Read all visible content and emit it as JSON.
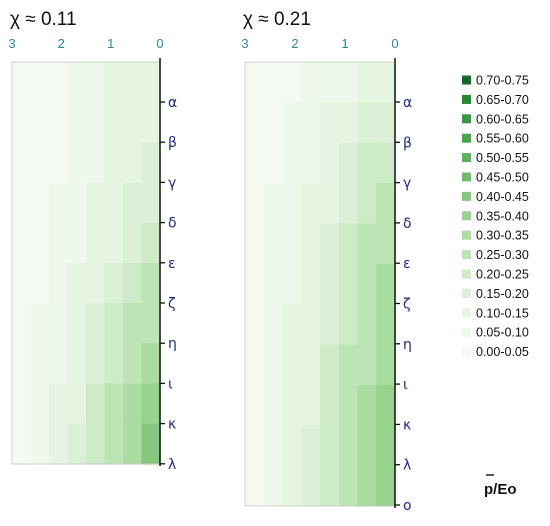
{
  "chart_data": {
    "type": "heatmap",
    "colorbar_title": "p/Eo",
    "colors": [
      "#f4faf2",
      "#eef8ec",
      "#e6f5e2",
      "#dbf0d6",
      "#cdebc6",
      "#bde4b5",
      "#abdca2",
      "#98d28f",
      "#84c77d",
      "#6fbd6b",
      "#5bb25b",
      "#46a64c",
      "#339a3f",
      "#238b33",
      "#0f6b25"
    ],
    "legend": [
      "0.70-0.75",
      "0.65-0.70",
      "0.60-0.65",
      "0.55-0.60",
      "0.50-0.55",
      "0.45-0.50",
      "0.40-0.45",
      "0.35-0.40",
      "0.30-0.35",
      "0.25-0.30",
      "0.20-0.25",
      "0.15-0.20",
      "0.10-0.15",
      "0.05-0.10",
      "0.00-0.05"
    ],
    "panels": [
      {
        "title": "χ ≈ 0.11",
        "x_ticks": [
          "3",
          "2",
          "1",
          "0"
        ],
        "x_range": [
          3,
          0
        ],
        "y_ticks": [
          "α",
          "β",
          "γ",
          "δ",
          "ε",
          "ζ",
          "η",
          "ι",
          "κ",
          "λ"
        ],
        "rows": [
          [
            0.02,
            0.03,
            0.04,
            0.06,
            0.08,
            0.1,
            0.12,
            0.14
          ],
          [
            0.02,
            0.03,
            0.04,
            0.06,
            0.08,
            0.1,
            0.12,
            0.14
          ],
          [
            0.02,
            0.03,
            0.04,
            0.06,
            0.08,
            0.11,
            0.14,
            0.17
          ],
          [
            0.02,
            0.03,
            0.05,
            0.07,
            0.1,
            0.13,
            0.16,
            0.19
          ],
          [
            0.02,
            0.04,
            0.06,
            0.09,
            0.12,
            0.15,
            0.18,
            0.22
          ],
          [
            0.02,
            0.04,
            0.07,
            0.1,
            0.14,
            0.18,
            0.22,
            0.26
          ],
          [
            0.03,
            0.05,
            0.08,
            0.12,
            0.16,
            0.2,
            0.25,
            0.29
          ],
          [
            0.03,
            0.06,
            0.09,
            0.13,
            0.18,
            0.23,
            0.28,
            0.33
          ],
          [
            0.03,
            0.06,
            0.1,
            0.14,
            0.2,
            0.25,
            0.31,
            0.36
          ],
          [
            0.03,
            0.07,
            0.11,
            0.16,
            0.22,
            0.28,
            0.34,
            0.4
          ]
        ]
      },
      {
        "title": "χ ≈ 0.21",
        "x_ticks": [
          "3",
          "2",
          "1",
          "0"
        ],
        "x_range": [
          3,
          0
        ],
        "y_ticks": [
          "α",
          "β",
          "γ",
          "δ",
          "ε",
          "ζ",
          "η",
          "ι",
          "κ",
          "λ",
          "ο"
        ],
        "rows": [
          [
            0.02,
            0.03,
            0.04,
            0.05,
            0.06,
            0.08,
            0.1,
            0.12
          ],
          [
            0.02,
            0.03,
            0.05,
            0.07,
            0.1,
            0.13,
            0.16,
            0.19
          ],
          [
            0.02,
            0.04,
            0.06,
            0.09,
            0.13,
            0.17,
            0.21,
            0.24
          ],
          [
            0.03,
            0.05,
            0.08,
            0.11,
            0.15,
            0.19,
            0.23,
            0.27
          ],
          [
            0.03,
            0.05,
            0.08,
            0.12,
            0.16,
            0.21,
            0.25,
            0.29
          ],
          [
            0.03,
            0.06,
            0.09,
            0.13,
            0.18,
            0.23,
            0.27,
            0.31
          ],
          [
            0.03,
            0.06,
            0.1,
            0.14,
            0.19,
            0.24,
            0.29,
            0.33
          ],
          [
            0.03,
            0.06,
            0.1,
            0.15,
            0.2,
            0.25,
            0.3,
            0.34
          ],
          [
            0.03,
            0.06,
            0.1,
            0.15,
            0.21,
            0.26,
            0.31,
            0.36
          ],
          [
            0.03,
            0.07,
            0.11,
            0.16,
            0.22,
            0.27,
            0.32,
            0.37
          ],
          [
            0.03,
            0.07,
            0.11,
            0.16,
            0.22,
            0.28,
            0.33,
            0.38
          ]
        ]
      }
    ]
  }
}
